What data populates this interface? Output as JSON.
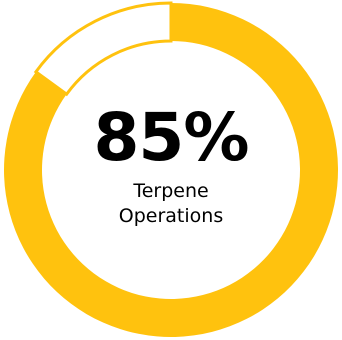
{
  "chart_data": {
    "type": "pie",
    "style": "donut",
    "value_percent": 85,
    "remainder_percent": 15,
    "display_value": "85%",
    "label_lines": [
      "Terpene",
      "Operations"
    ],
    "colors": {
      "fill": "#FFC20E",
      "remainder": "#FFFFFF",
      "remainder_outline": "#FFC20E"
    }
  }
}
